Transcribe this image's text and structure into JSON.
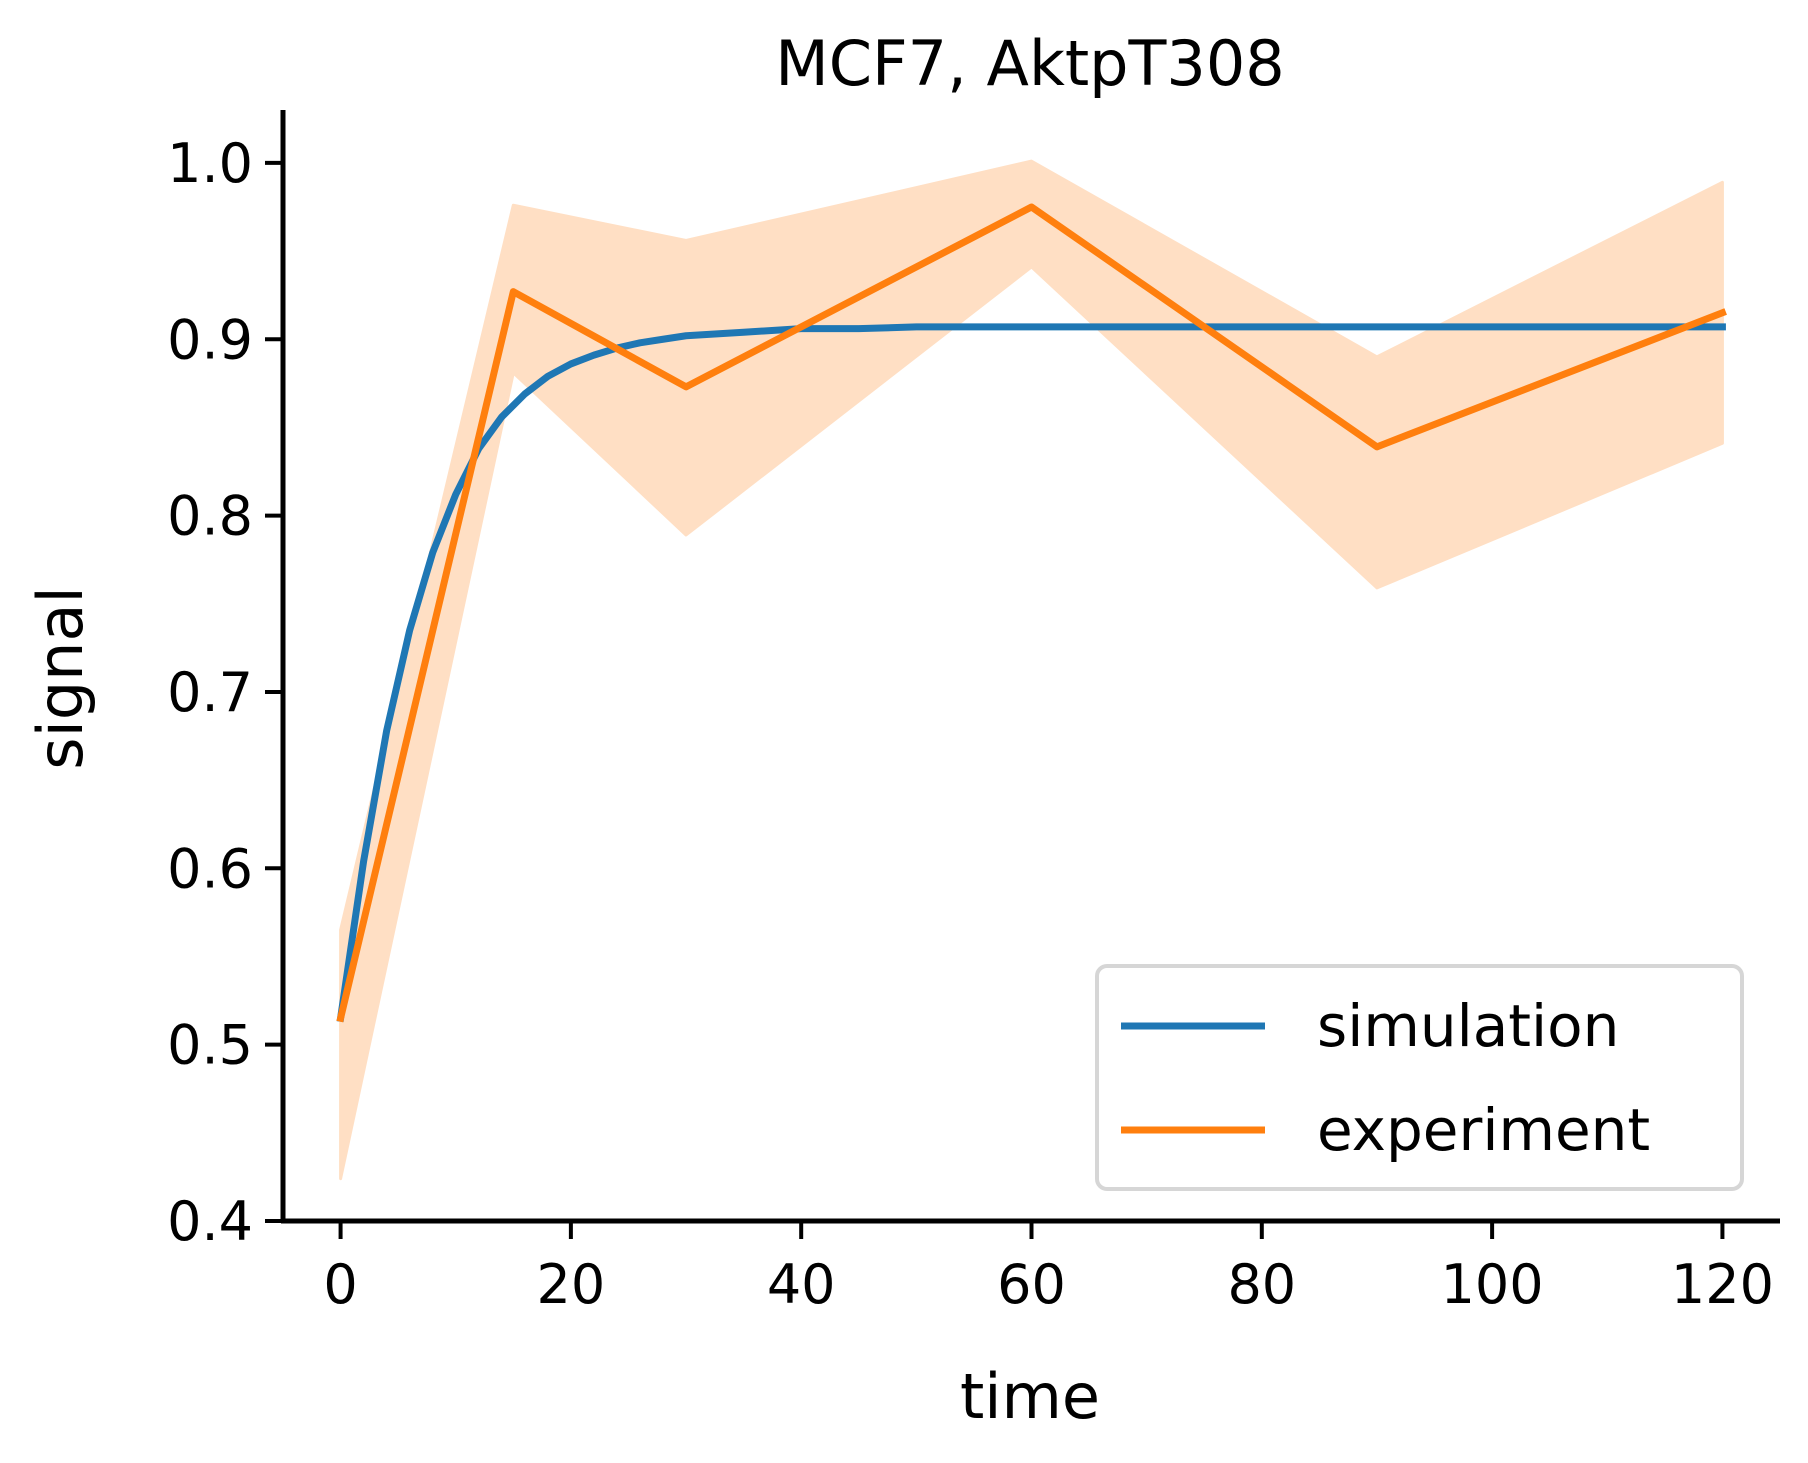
{
  "chart_data": {
    "type": "line",
    "title": "MCF7, AktpT308",
    "xlabel": "time",
    "ylabel": "signal",
    "xlim": [
      -5,
      125
    ],
    "ylim": [
      0.4,
      1.03
    ],
    "xticks": [
      0,
      20,
      40,
      60,
      80,
      100,
      120
    ],
    "xtick_labels": [
      "0",
      "20",
      "40",
      "60",
      "80",
      "100",
      "120"
    ],
    "yticks": [
      0.4,
      0.5,
      0.6,
      0.7,
      0.8,
      0.9,
      1.0
    ],
    "ytick_labels": [
      "0.4",
      "0.5",
      "0.6",
      "0.7",
      "0.8",
      "0.9",
      "1.0"
    ],
    "grid": false,
    "legend_position": "bottom-right",
    "series": [
      {
        "name": "simulation",
        "color": "#1f77b4",
        "kind": "curve",
        "x": [
          0,
          2,
          4,
          6,
          8,
          10,
          12,
          14,
          16,
          18,
          20,
          22,
          24,
          26,
          28,
          30,
          35,
          40,
          45,
          50,
          60,
          70,
          80,
          90,
          100,
          110,
          120
        ],
        "y": [
          0.515,
          0.604,
          0.678,
          0.735,
          0.779,
          0.812,
          0.838,
          0.856,
          0.869,
          0.879,
          0.886,
          0.891,
          0.895,
          0.898,
          0.9,
          0.902,
          0.904,
          0.906,
          0.906,
          0.907,
          0.907,
          0.907,
          0.907,
          0.907,
          0.907,
          0.907,
          0.907
        ]
      },
      {
        "name": "experiment",
        "color": "#ff7f0e",
        "kind": "line-with-band",
        "x": [
          0,
          15,
          30,
          60,
          90,
          120
        ],
        "y": [
          0.515,
          0.927,
          0.873,
          0.975,
          0.839,
          0.915
        ],
        "lower": [
          0.424,
          0.881,
          0.789,
          0.941,
          0.759,
          0.841
        ],
        "upper": [
          0.565,
          0.976,
          0.956,
          1.001,
          0.89,
          0.989
        ],
        "band_color": "#ffdfc4"
      }
    ]
  }
}
